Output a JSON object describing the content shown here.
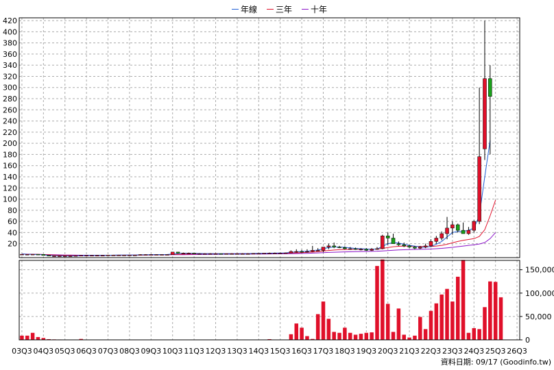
{
  "legend": {
    "items": [
      {
        "label": "年線",
        "color": "#1f5fd6"
      },
      {
        "label": "三年",
        "color": "#e0102a"
      },
      {
        "label": "十年",
        "color": "#8a12c8"
      }
    ]
  },
  "footnote": "資料日期: 09/17  (Goodinfo.tw)",
  "chart_data": {
    "type": "candlestick+bar",
    "price_axis": {
      "ticks": [
        20,
        40,
        60,
        80,
        100,
        120,
        140,
        160,
        180,
        200,
        220,
        240,
        260,
        280,
        300,
        320,
        340,
        360,
        380,
        400,
        420
      ],
      "ylim": [
        -5,
        425
      ]
    },
    "volume_axis": {
      "ticks": [
        "0",
        "50,000",
        "100,000",
        "150,000"
      ],
      "tick_values": [
        0,
        50000,
        100000,
        150000
      ],
      "ylim": [
        0,
        170000
      ]
    },
    "x_ticks": [
      "03Q3",
      "04Q3",
      "05Q3",
      "06Q3",
      "07Q3",
      "08Q3",
      "09Q3",
      "10Q3",
      "11Q3",
      "12Q3",
      "13Q3",
      "14Q3",
      "15Q3",
      "16Q3",
      "17Q3",
      "18Q3",
      "19Q3",
      "20Q3",
      "21Q3",
      "22Q3",
      "23Q3",
      "24Q3",
      "25Q3",
      "26Q3"
    ],
    "n_periods": 93,
    "first_period_index": 0,
    "colors": {
      "up": "#e0102a",
      "down": "#1aa01a",
      "volume": "#e0102a"
    },
    "candles": [
      [
        0,
        1,
        0.5,
        1
      ],
      [
        0.5,
        1,
        0.2,
        0.8
      ],
      [
        0.8,
        1.2,
        0.5,
        1
      ],
      [
        1,
        1.2,
        0.5,
        0.8
      ],
      [
        0.8,
        1,
        -1,
        -1
      ],
      [
        -1,
        -1,
        -2,
        -2
      ],
      [
        -2,
        -1.5,
        -2.5,
        -2
      ],
      [
        -2,
        -1.5,
        -2.5,
        -2
      ],
      [
        -2,
        -1.5,
        -2.5,
        -2
      ],
      [
        -2,
        -1.5,
        -2.5,
        -2
      ],
      [
        -2,
        -1,
        -2.5,
        -1.5
      ],
      [
        -1.5,
        -0.5,
        -2,
        -1
      ],
      [
        -1,
        -0.5,
        -1.5,
        -1
      ],
      [
        -1,
        -0.5,
        -1.5,
        -1
      ],
      [
        -1,
        -0.5,
        -1.5,
        -1
      ],
      [
        -1,
        -0.5,
        -1.5,
        -1
      ],
      [
        -1,
        0,
        -1.5,
        -0.5
      ],
      [
        -0.5,
        0,
        -1,
        -0.5
      ],
      [
        -0.5,
        0,
        -1,
        -0.5
      ],
      [
        -0.5,
        0,
        -1,
        -0.5
      ],
      [
        -0.5,
        0,
        -1,
        -0.5
      ],
      [
        -0.5,
        0,
        -1,
        -0.5
      ],
      [
        -0.5,
        1,
        -1,
        0.5
      ],
      [
        0.5,
        1,
        -0.5,
        0.5
      ],
      [
        0.5,
        1,
        0,
        0.5
      ],
      [
        0.5,
        1,
        0,
        0.5
      ],
      [
        0.5,
        1,
        0,
        0.5
      ],
      [
        0.5,
        1,
        0,
        0.5
      ],
      [
        0.5,
        5,
        0.5,
        5
      ],
      [
        5,
        5,
        2,
        3
      ],
      [
        3,
        4,
        2,
        3
      ],
      [
        3,
        4,
        2,
        3
      ],
      [
        3,
        3,
        2,
        2
      ],
      [
        2,
        3,
        1,
        2
      ],
      [
        2,
        3,
        1,
        2
      ],
      [
        2,
        3,
        1,
        2
      ],
      [
        2,
        3,
        1,
        2
      ],
      [
        2,
        2.5,
        1,
        1.5
      ],
      [
        1.5,
        2.5,
        1,
        2
      ],
      [
        2,
        3,
        1.5,
        2
      ],
      [
        2,
        3,
        1.5,
        2
      ],
      [
        2,
        3,
        1.5,
        2
      ],
      [
        2,
        3,
        1.5,
        2
      ],
      [
        2,
        3,
        1.5,
        2.5
      ],
      [
        2.5,
        3,
        2,
        2.5
      ],
      [
        2.5,
        3,
        2,
        3
      ],
      [
        3,
        4,
        2,
        3
      ],
      [
        3,
        4,
        2,
        3
      ],
      [
        3,
        4,
        2,
        3
      ],
      [
        3,
        4,
        2.5,
        3.5
      ],
      [
        3.5,
        8,
        3,
        6
      ],
      [
        6,
        10,
        4,
        6
      ],
      [
        6,
        9,
        4,
        5
      ],
      [
        5,
        10,
        4,
        6
      ],
      [
        6,
        16,
        5,
        8
      ],
      [
        8,
        12,
        7,
        8
      ],
      [
        8,
        14,
        5,
        14
      ],
      [
        14,
        20,
        10,
        16
      ],
      [
        16,
        22,
        12,
        14
      ],
      [
        14,
        16,
        12,
        13
      ],
      [
        13,
        15,
        10,
        11
      ],
      [
        11,
        14,
        9,
        11
      ],
      [
        11,
        13,
        9,
        10
      ],
      [
        10,
        12,
        8,
        10
      ],
      [
        10,
        12,
        7,
        8
      ],
      [
        8,
        12,
        7,
        10
      ],
      [
        10,
        14,
        9,
        11
      ],
      [
        11,
        36,
        10,
        34
      ],
      [
        34,
        40,
        18,
        30
      ],
      [
        30,
        38,
        20,
        20
      ],
      [
        20,
        24,
        16,
        18
      ],
      [
        18,
        22,
        14,
        16
      ],
      [
        16,
        18,
        12,
        14
      ],
      [
        14,
        16,
        10,
        12
      ],
      [
        12,
        16,
        10,
        14
      ],
      [
        14,
        20,
        12,
        16
      ],
      [
        16,
        28,
        14,
        24
      ],
      [
        24,
        34,
        20,
        30
      ],
      [
        30,
        42,
        26,
        38
      ],
      [
        38,
        68,
        28,
        48
      ],
      [
        48,
        60,
        36,
        54
      ],
      [
        54,
        56,
        40,
        44
      ],
      [
        44,
        58,
        38,
        38
      ],
      [
        38,
        50,
        36,
        44
      ],
      [
        44,
        62,
        40,
        60
      ],
      [
        60,
        300,
        55,
        176
      ],
      [
        190,
        420,
        170,
        316
      ],
      [
        316,
        340,
        180,
        284
      ]
    ],
    "volume": [
      9000,
      9000,
      15000,
      6000,
      4000,
      1500,
      1000,
      800,
      500,
      400,
      300,
      2000,
      300,
      300,
      300,
      300,
      300,
      300,
      300,
      300,
      300,
      300,
      300,
      300,
      300,
      300,
      300,
      300,
      300,
      300,
      300,
      300,
      300,
      300,
      300,
      300,
      300,
      300,
      300,
      300,
      300,
      300,
      300,
      300,
      300,
      500,
      1500,
      500,
      300,
      300,
      12000,
      35000,
      26000,
      8000,
      2000,
      55000,
      82000,
      45000,
      17000,
      15000,
      26000,
      15000,
      11000,
      13000,
      15000,
      16000,
      158000,
      172000,
      77000,
      17000,
      67000,
      11000,
      5000,
      9000,
      49000,
      23000,
      62000,
      78000,
      97000,
      109000,
      82000,
      135000,
      171000,
      15000,
      25000,
      23000,
      70000,
      125000,
      124000,
      91000
    ],
    "ma_year": [
      1.5,
      1,
      0.8,
      0.5,
      0,
      -1,
      -1.5,
      -1.8,
      -2,
      -2,
      -1.8,
      -1.5,
      -1.2,
      -1,
      -1,
      -1,
      -0.8,
      -0.6,
      -0.5,
      -0.5,
      -0.4,
      -0.3,
      0,
      0.3,
      0.4,
      0.5,
      0.5,
      0.6,
      1.5,
      2.5,
      3,
      3,
      2.8,
      2.5,
      2.3,
      2.2,
      2.1,
      2,
      2,
      2,
      2.1,
      2.2,
      2.3,
      2.5,
      2.6,
      2.8,
      3,
      3.1,
      3.2,
      3.5,
      4.5,
      5.5,
      6,
      6.5,
      7.5,
      8.5,
      11,
      13,
      14,
      14,
      13.5,
      12.5,
      11.5,
      11,
      10.5,
      10,
      10.5,
      15,
      20,
      22,
      21,
      19,
      17,
      15.5,
      14,
      13.5,
      15,
      19,
      24,
      32,
      40,
      42,
      42,
      44,
      48,
      70,
      140,
      205
    ],
    "ma_3y": [
      1.5,
      1.2,
      1,
      0.8,
      0.5,
      0,
      -0.5,
      -0.8,
      -1,
      -1.2,
      -1.3,
      -1.4,
      -1.3,
      -1.2,
      -1.1,
      -1,
      -1,
      -1,
      -0.9,
      -0.8,
      -0.7,
      -0.6,
      -0.4,
      -0.2,
      0,
      0.1,
      0.2,
      0.3,
      0.6,
      0.9,
      1.1,
      1.3,
      1.5,
      1.7,
      1.9,
      2,
      2.1,
      2.1,
      2.1,
      2.1,
      2.1,
      2.2,
      2.2,
      2.3,
      2.3,
      2.4,
      2.5,
      2.6,
      2.7,
      2.9,
      3.2,
      3.6,
      4,
      4.4,
      5,
      5.8,
      6.8,
      7.8,
      8.6,
      9.2,
      9.6,
      9.8,
      10,
      10.1,
      10.2,
      10.3,
      10.5,
      11.5,
      13,
      14.5,
      15.3,
      15.6,
      15.5,
      15.3,
      15,
      14.8,
      15,
      15.8,
      17,
      19,
      21.5,
      24,
      26,
      27.5,
      29,
      33,
      45,
      70,
      98
    ],
    "ma_10y": [
      1.5,
      1.3,
      1.1,
      0.9,
      0.7,
      0.4,
      0.1,
      -0.1,
      -0.3,
      -0.5,
      -0.6,
      -0.7,
      -0.7,
      -0.7,
      -0.7,
      -0.7,
      -0.7,
      -0.7,
      -0.6,
      -0.6,
      -0.5,
      -0.5,
      -0.4,
      -0.3,
      -0.2,
      -0.1,
      0,
      0,
      0.1,
      0.2,
      0.3,
      0.4,
      0.5,
      0.6,
      0.7,
      0.8,
      0.9,
      1,
      1.1,
      1.1,
      1.2,
      1.2,
      1.3,
      1.4,
      1.4,
      1.5,
      1.6,
      1.7,
      1.8,
      1.9,
      2,
      2.2,
      2.5,
      2.8,
      3.1,
      3.5,
      3.9,
      4.3,
      4.7,
      5,
      5.3,
      5.5,
      5.7,
      5.9,
      6.1,
      6.3,
      6.5,
      7,
      7.6,
      8.2,
      8.7,
      9.1,
      9.4,
      9.7,
      10,
      10.2,
      10.5,
      11,
      11.6,
      12.4,
      13.4,
      14.6,
      15.8,
      17,
      18,
      19.5,
      22,
      29,
      40
    ]
  }
}
